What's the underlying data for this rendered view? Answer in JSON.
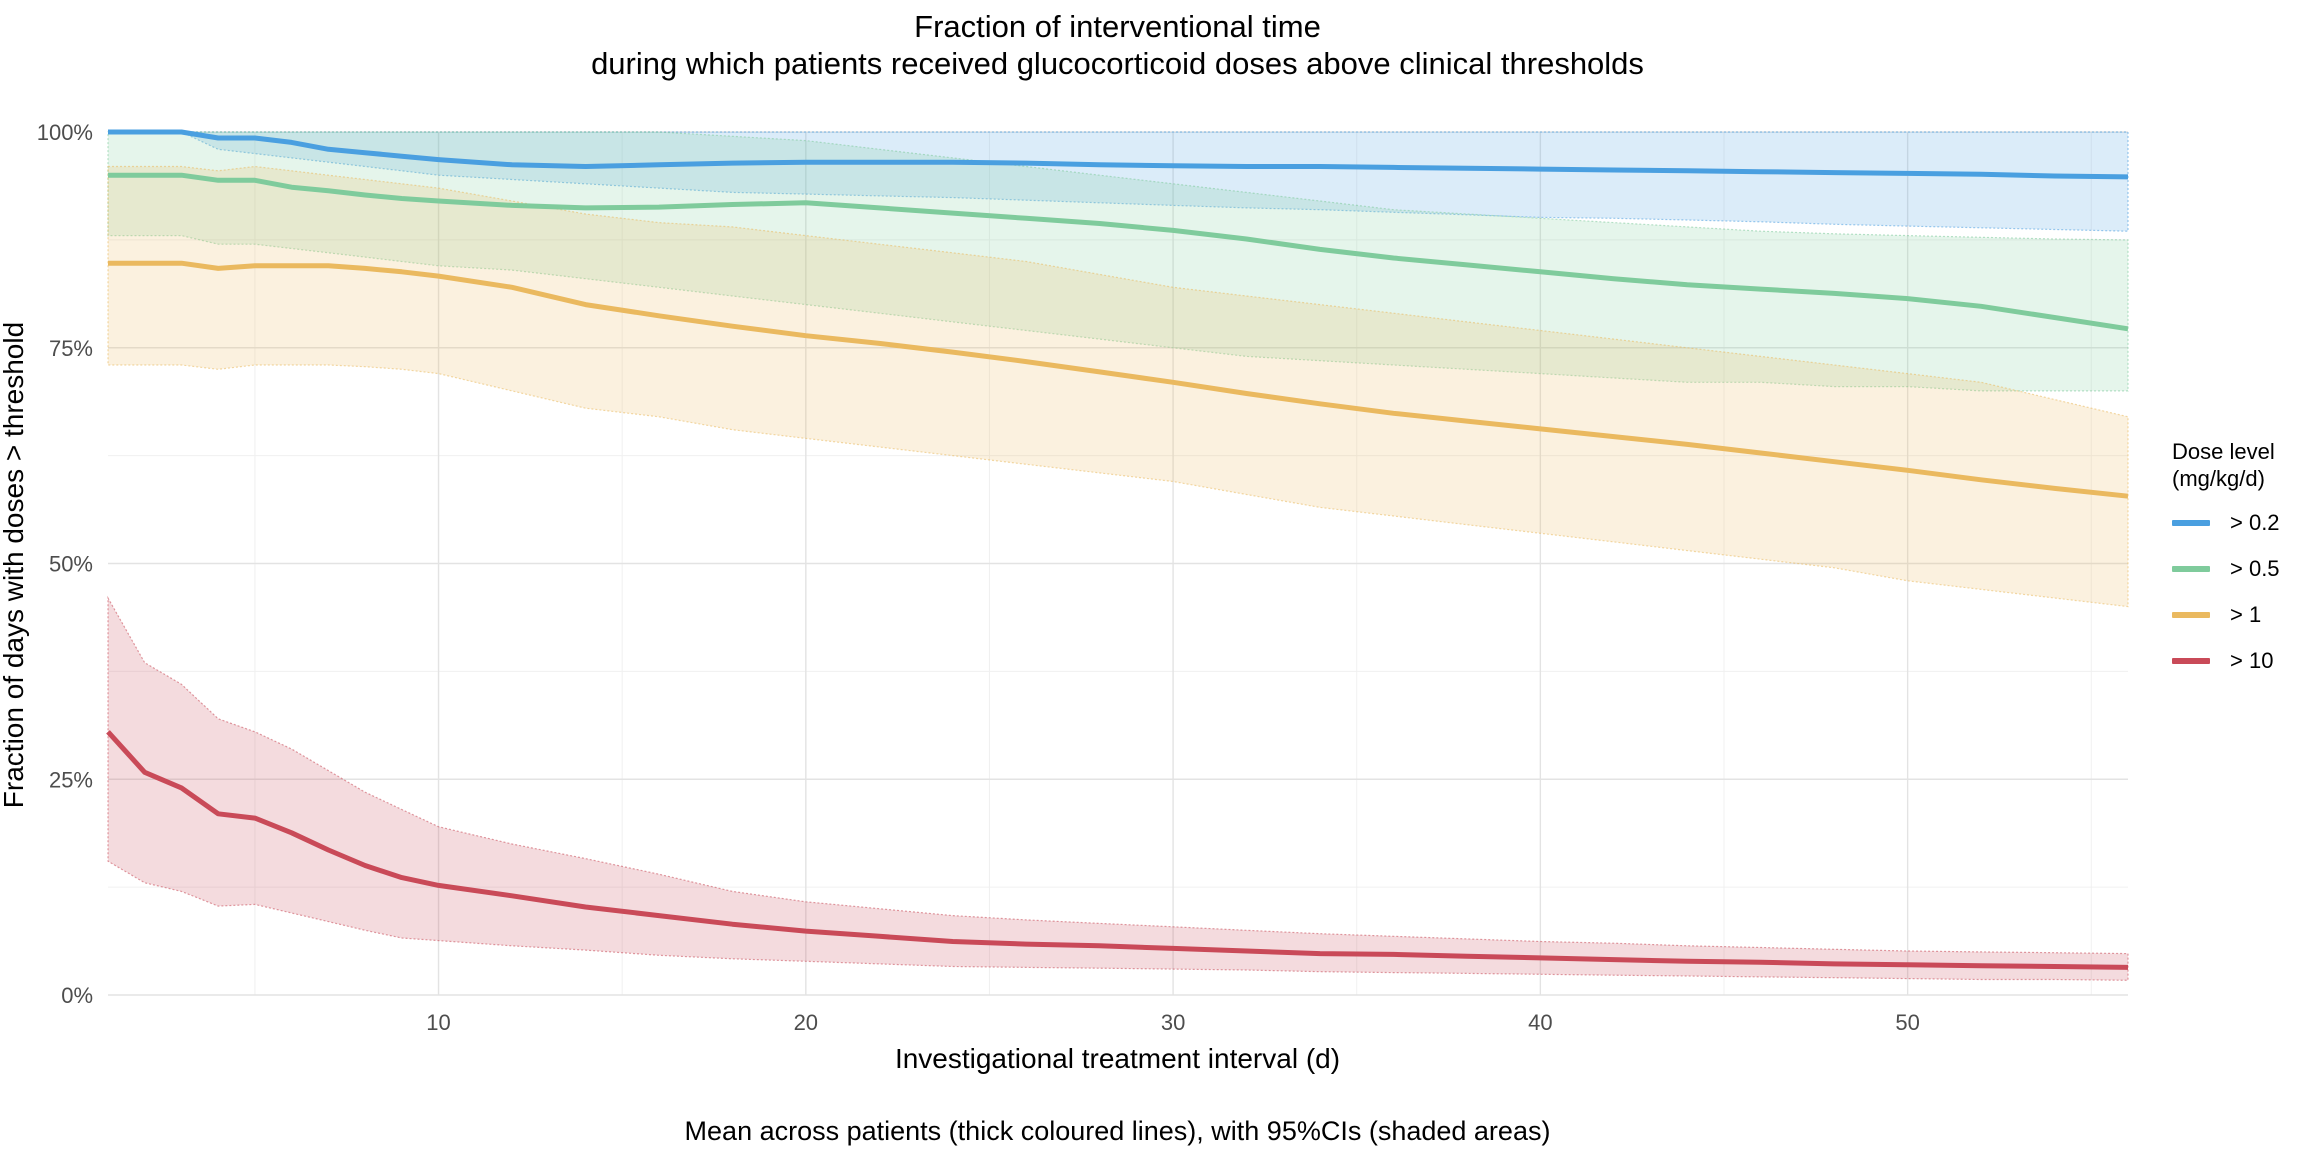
{
  "chart_data": {
    "type": "line",
    "title": "Fraction of interventional time",
    "subtitle": "during which patients received glucocorticoid doses above clinical thresholds",
    "xlabel": "Investigational treatment interval (d)",
    "ylabel": "Fraction of days with doses > threshold",
    "caption": "Mean across patients (thick coloured lines), with 95%CIs (shaded areas)",
    "xlim": [
      1,
      56
    ],
    "ylim": [
      0,
      1
    ],
    "x_ticks": [
      10,
      20,
      30,
      40,
      50
    ],
    "y_ticks": [
      0,
      0.25,
      0.5,
      0.75,
      1
    ],
    "y_tick_labels": [
      "0%",
      "25%",
      "50%",
      "75%",
      "100%"
    ],
    "grid": true,
    "legend": {
      "title": "Dose level\n(mg/kg/d)",
      "position": "right"
    },
    "x": [
      1,
      2,
      3,
      4,
      5,
      6,
      7,
      8,
      9,
      10,
      12,
      14,
      16,
      18,
      20,
      22,
      24,
      26,
      28,
      30,
      32,
      34,
      36,
      38,
      40,
      42,
      44,
      46,
      48,
      50,
      52,
      54,
      56
    ],
    "series": [
      {
        "name": "> 0.2",
        "color": "#4a9fe0",
        "values": [
          1.0,
          1.0,
          1.0,
          0.993,
          0.993,
          0.988,
          0.98,
          0.976,
          0.972,
          0.968,
          0.962,
          0.96,
          0.962,
          0.964,
          0.965,
          0.965,
          0.965,
          0.964,
          0.962,
          0.961,
          0.96,
          0.96,
          0.959,
          0.958,
          0.957,
          0.956,
          0.955,
          0.954,
          0.953,
          0.952,
          0.951,
          0.949,
          0.948
        ],
        "lower": [
          1.0,
          1.0,
          1.0,
          0.98,
          0.975,
          0.97,
          0.965,
          0.96,
          0.955,
          0.95,
          0.945,
          0.94,
          0.935,
          0.93,
          0.928,
          0.926,
          0.924,
          0.921,
          0.918,
          0.915,
          0.912,
          0.91,
          0.907,
          0.904,
          0.901,
          0.9,
          0.898,
          0.896,
          0.893,
          0.891,
          0.889,
          0.887,
          0.885
        ],
        "upper": [
          1.0,
          1.0,
          1.0,
          1.0,
          1.0,
          1.0,
          1.0,
          1.0,
          1.0,
          1.0,
          1.0,
          1.0,
          1.0,
          1.0,
          1.0,
          1.0,
          1.0,
          1.0,
          1.0,
          1.0,
          1.0,
          1.0,
          1.0,
          1.0,
          1.0,
          1.0,
          1.0,
          1.0,
          1.0,
          1.0,
          1.0,
          1.0,
          1.0
        ]
      },
      {
        "name": "> 0.5",
        "color": "#7fcb9c",
        "values": [
          0.95,
          0.95,
          0.95,
          0.944,
          0.944,
          0.936,
          0.932,
          0.927,
          0.923,
          0.92,
          0.915,
          0.912,
          0.913,
          0.916,
          0.918,
          0.912,
          0.906,
          0.9,
          0.894,
          0.886,
          0.876,
          0.864,
          0.854,
          0.846,
          0.838,
          0.83,
          0.823,
          0.818,
          0.813,
          0.807,
          0.798,
          0.785,
          0.772
        ],
        "lower": [
          0.88,
          0.88,
          0.88,
          0.87,
          0.87,
          0.865,
          0.86,
          0.855,
          0.85,
          0.845,
          0.84,
          0.83,
          0.82,
          0.81,
          0.8,
          0.79,
          0.78,
          0.77,
          0.76,
          0.75,
          0.74,
          0.735,
          0.73,
          0.725,
          0.72,
          0.715,
          0.71,
          0.71,
          0.705,
          0.705,
          0.7,
          0.7,
          0.7
        ],
        "upper": [
          1.0,
          1.0,
          1.0,
          1.0,
          1.0,
          1.0,
          1.0,
          1.0,
          1.0,
          1.0,
          1.0,
          1.0,
          1.0,
          0.995,
          0.99,
          0.98,
          0.97,
          0.96,
          0.95,
          0.94,
          0.93,
          0.92,
          0.91,
          0.905,
          0.9,
          0.895,
          0.89,
          0.885,
          0.882,
          0.88,
          0.878,
          0.876,
          0.875
        ]
      },
      {
        "name": "> 1",
        "color": "#eab95f",
        "values": [
          0.848,
          0.848,
          0.848,
          0.842,
          0.845,
          0.845,
          0.845,
          0.842,
          0.838,
          0.833,
          0.82,
          0.8,
          0.787,
          0.775,
          0.764,
          0.755,
          0.745,
          0.734,
          0.722,
          0.71,
          0.697,
          0.685,
          0.674,
          0.665,
          0.656,
          0.647,
          0.638,
          0.628,
          0.618,
          0.608,
          0.597,
          0.587,
          0.578
        ],
        "lower": [
          0.73,
          0.73,
          0.73,
          0.725,
          0.73,
          0.73,
          0.73,
          0.728,
          0.725,
          0.72,
          0.7,
          0.68,
          0.67,
          0.655,
          0.645,
          0.635,
          0.625,
          0.615,
          0.605,
          0.595,
          0.58,
          0.565,
          0.555,
          0.545,
          0.535,
          0.525,
          0.515,
          0.505,
          0.495,
          0.48,
          0.47,
          0.46,
          0.45
        ],
        "upper": [
          0.96,
          0.96,
          0.96,
          0.955,
          0.96,
          0.955,
          0.95,
          0.945,
          0.94,
          0.935,
          0.92,
          0.905,
          0.895,
          0.89,
          0.88,
          0.87,
          0.86,
          0.85,
          0.835,
          0.82,
          0.81,
          0.8,
          0.79,
          0.78,
          0.77,
          0.76,
          0.75,
          0.74,
          0.73,
          0.72,
          0.71,
          0.69,
          0.67
        ]
      },
      {
        "name": "> 10",
        "color": "#c94a58",
        "values": [
          0.305,
          0.258,
          0.24,
          0.21,
          0.205,
          0.188,
          0.168,
          0.15,
          0.136,
          0.127,
          0.115,
          0.102,
          0.092,
          0.082,
          0.074,
          0.068,
          0.062,
          0.059,
          0.057,
          0.054,
          0.051,
          0.048,
          0.047,
          0.045,
          0.043,
          0.041,
          0.039,
          0.038,
          0.036,
          0.035,
          0.034,
          0.033,
          0.032
        ],
        "lower": [
          0.155,
          0.13,
          0.12,
          0.103,
          0.105,
          0.095,
          0.085,
          0.075,
          0.066,
          0.063,
          0.057,
          0.052,
          0.046,
          0.042,
          0.039,
          0.036,
          0.033,
          0.032,
          0.031,
          0.03,
          0.029,
          0.027,
          0.026,
          0.025,
          0.024,
          0.023,
          0.022,
          0.021,
          0.02,
          0.019,
          0.018,
          0.018,
          0.017
        ],
        "upper": [
          0.46,
          0.385,
          0.36,
          0.32,
          0.305,
          0.285,
          0.26,
          0.235,
          0.215,
          0.195,
          0.175,
          0.158,
          0.14,
          0.12,
          0.108,
          0.1,
          0.092,
          0.087,
          0.083,
          0.079,
          0.075,
          0.071,
          0.068,
          0.065,
          0.062,
          0.06,
          0.057,
          0.055,
          0.053,
          0.051,
          0.05,
          0.049,
          0.048
        ]
      }
    ]
  }
}
